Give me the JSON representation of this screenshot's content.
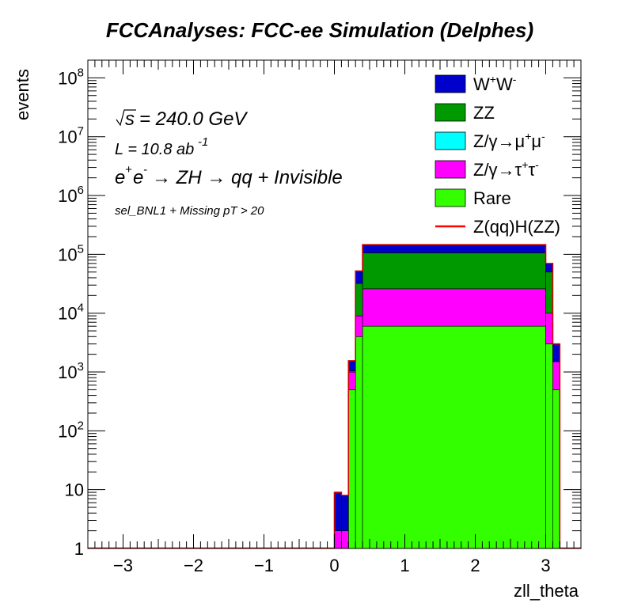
{
  "chart_data": {
    "type": "bar",
    "title": "FCCAnalyses: FCC-ee Simulation (Delphes)",
    "xlabel": "zll_theta",
    "ylabel": "events",
    "xlim": [
      -3.5,
      3.5
    ],
    "ylim": [
      1,
      200000000
    ],
    "yscale": "log",
    "grid": false,
    "legend_position": "top-right",
    "x_ticks": [
      "−3",
      "−2",
      "−1",
      "0",
      "1",
      "2",
      "3"
    ],
    "y_ticks": [
      {
        "base": "1",
        "exp": ""
      },
      {
        "base": "10",
        "exp": ""
      },
      {
        "base": "10",
        "exp": "2"
      },
      {
        "base": "10",
        "exp": "3"
      },
      {
        "base": "10",
        "exp": "4"
      },
      {
        "base": "10",
        "exp": "5"
      },
      {
        "base": "10",
        "exp": "6"
      },
      {
        "base": "10",
        "exp": "7"
      },
      {
        "base": "10",
        "exp": "8"
      }
    ],
    "annotations": {
      "sqrt_s": "= 240.0 GeV",
      "lumi": "L = 10.8 ab",
      "lumi_exp": "-1",
      "process": "→ ZH → qq + Invisible",
      "selection": "sel_BNL1 + Missing pT > 20"
    },
    "stacked": true,
    "bin_edges": [
      0.0,
      0.1,
      0.2,
      0.3,
      0.4,
      3.0,
      3.1,
      3.2
    ],
    "series": [
      {
        "name": "Rare",
        "color": "#33ff00",
        "values": [
          1,
          1,
          500,
          4000,
          6000,
          3000,
          500,
          1
        ]
      },
      {
        "name": "Z/γ→τ⁺τ⁻",
        "color": "#ff00ff",
        "values": [
          1,
          1,
          500,
          5000,
          20000,
          7000,
          1000,
          15
        ]
      },
      {
        "name": "Z/γ→μ⁺μ⁻",
        "color": "#00ffff",
        "values": [
          0,
          0,
          0,
          0,
          0,
          0,
          0,
          0
        ]
      },
      {
        "name": "ZZ",
        "color": "#009900",
        "values": [
          0,
          0,
          50,
          23000,
          80000,
          40000,
          0,
          0
        ]
      },
      {
        "name": "W⁺W⁻",
        "color": "#0000cc",
        "values": [
          7,
          6,
          500,
          20000,
          40000,
          20000,
          1500,
          20
        ]
      },
      {
        "name": "Z(qq)H(ZZ)",
        "color": "#ff0000",
        "values": [
          0,
          0,
          0,
          0,
          0,
          0,
          0,
          0
        ]
      }
    ]
  },
  "legend": [
    {
      "label": "W",
      "sup": "+",
      "label2": "W",
      "sup2": "-",
      "color": "#0000cc",
      "kind": "box"
    },
    {
      "label": "ZZ",
      "color": "#009900",
      "kind": "box"
    },
    {
      "label": "Z/γ→μ",
      "sup": "+",
      "label2": "μ",
      "sup2": "-",
      "color": "#00ffff",
      "kind": "box"
    },
    {
      "label": "Z/γ→τ",
      "sup": "+",
      "label2": "τ",
      "sup2": "-",
      "color": "#ff00ff",
      "kind": "box"
    },
    {
      "label": "Rare",
      "color": "#33ff00",
      "kind": "box"
    },
    {
      "label": "Z(qq)H(ZZ)",
      "color": "#ff0000",
      "kind": "line"
    }
  ]
}
